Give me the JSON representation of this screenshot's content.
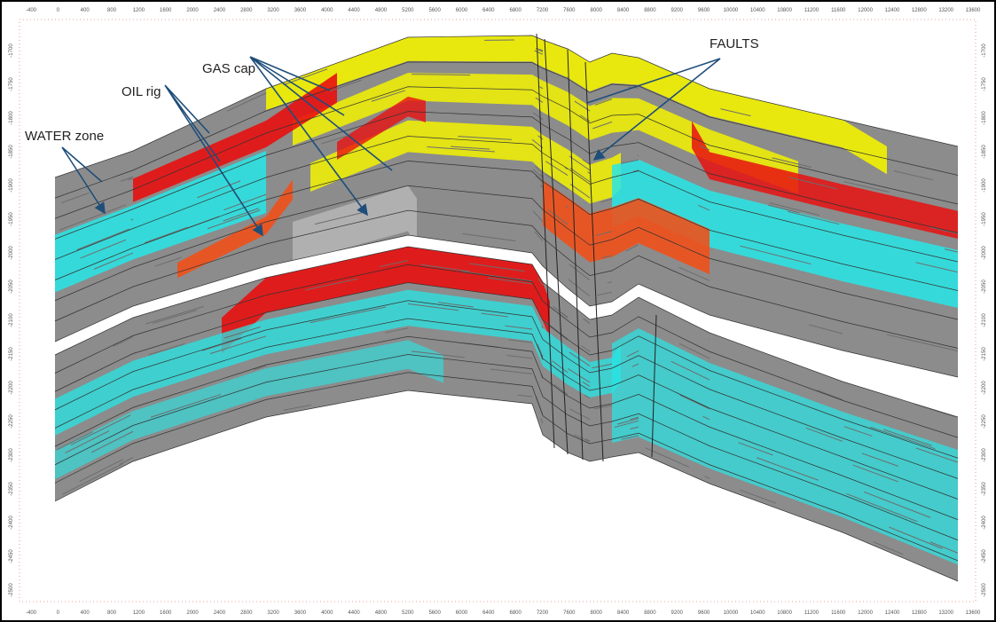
{
  "x_axis_labels": [
    -400,
    0,
    400,
    800,
    1200,
    1600,
    2000,
    2400,
    2800,
    3200,
    3600,
    4000,
    4400,
    4800,
    5200,
    5600,
    6000,
    6400,
    6800,
    7200,
    7600,
    8000,
    8400,
    8800,
    9200,
    9600,
    10000,
    10400,
    10800,
    11200,
    11600,
    12000,
    12400,
    12800,
    13200,
    13600
  ],
  "y_axis_labels": [
    -1700,
    -1750,
    -1800,
    -1850,
    -1900,
    -1950,
    -2000,
    -2050,
    -2100,
    -2150,
    -2200,
    -2250,
    -2300,
    -2350,
    -2400,
    -2450,
    -2500
  ],
  "annotations": {
    "gas": "GAS cap",
    "oil": "OIL rig",
    "water": "WATER zone",
    "faults": "FAULTS"
  }
}
